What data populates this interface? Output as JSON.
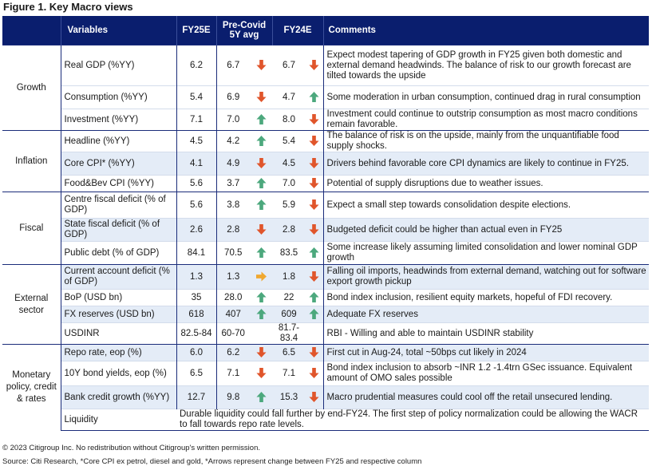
{
  "title": "Figure 1. Key Macro views",
  "headers": {
    "group": "",
    "variables": "Variables",
    "fy25": "FY25E",
    "precovid": "Pre-Covid 5Y avg",
    "fy24": "FY24E",
    "comments": "Comments"
  },
  "groups": [
    {
      "name": "Growth",
      "rows": [
        {
          "var": "Real GDP (%YY)",
          "fy25": "6.2",
          "pc": "6.7",
          "a1": "down",
          "fy24": "6.7",
          "a2": "down",
          "com": "Expect modest tapering of GDP growth in FY25 given both domestic and external demand headwinds. The balance of risk to our growth forecast are tilted towards the upside"
        },
        {
          "var": "Consumption (%YY)",
          "fy25": "5.4",
          "pc": "6.9",
          "a1": "down",
          "fy24": "4.7",
          "a2": "up",
          "com": "Some moderation in urban consumption, continued drag in rural consumption"
        },
        {
          "var": "Investment (%YY)",
          "fy25": "7.1",
          "pc": "7.0",
          "a1": "up",
          "fy24": "8.0",
          "a2": "down",
          "com": "Investment could continue to outstrip consumption as most macro conditions remain favorable."
        }
      ]
    },
    {
      "name": "Inflation",
      "rows": [
        {
          "var": "Headline (%YY)",
          "fy25": "4.5",
          "pc": "4.2",
          "a1": "up",
          "fy24": "5.4",
          "a2": "down",
          "com": "The balance of risk is on the upside, mainly from the unquantifiable food supply shocks."
        },
        {
          "var": "Core CPI* (%YY)",
          "fy25": "4.1",
          "pc": "4.9",
          "a1": "down",
          "fy24": "4.5",
          "a2": "down",
          "com": "Drivers behind favorable core CPI dynamics are likely to continue in FY25."
        },
        {
          "var": "Food&Bev CPI (%YY)",
          "fy25": "5.6",
          "pc": "3.7",
          "a1": "up",
          "fy24": "7.0",
          "a2": "down",
          "com": "Potential of supply disruptions due to weather issues."
        }
      ]
    },
    {
      "name": "Fiscal",
      "rows": [
        {
          "var": "Centre fiscal deficit (% of GDP)",
          "fy25": "5.6",
          "pc": "3.8",
          "a1": "up",
          "fy24": "5.9",
          "a2": "down",
          "com": "Expect a small step towards consolidation despite elections."
        },
        {
          "var": "State fiscal deficit (% of GDP)",
          "fy25": "2.6",
          "pc": "2.8",
          "a1": "down",
          "fy24": "2.8",
          "a2": "down",
          "com": "Budgeted deficit could be higher than actual even in FY25"
        },
        {
          "var": "Public debt (% of GDP)",
          "fy25": "84.1",
          "pc": "70.5",
          "a1": "up",
          "fy24": "83.5",
          "a2": "up",
          "com": "Some increase likely assuming limited consolidation and lower nominal GDP growth"
        }
      ]
    },
    {
      "name": "External sector",
      "rows": [
        {
          "var": "Current account deficit (% of GDP)",
          "fy25": "1.3",
          "pc": "1.3",
          "a1": "flat",
          "fy24": "1.8",
          "a2": "down",
          "com": "Falling oil imports, headwinds from external demand, watching out for software export growth pickup"
        },
        {
          "var": "BoP (USD bn)",
          "fy25": "35",
          "pc": "28.0",
          "a1": "up",
          "fy24": "22",
          "a2": "up",
          "com": "Bond index inclusion, resilient equity markets, hopeful of FDI recovery."
        },
        {
          "var": "FX reserves (USD bn)",
          "fy25": "618",
          "pc": "407",
          "a1": "up",
          "fy24": "609",
          "a2": "up",
          "com": "Adequate FX reserves"
        },
        {
          "var": "USDINR",
          "fy25": "82.5-84",
          "pc": "60-70",
          "a1": "",
          "fy24": "81.7-83.4",
          "a2": "",
          "com": "RBI - Willing and able to maintain USDINR stability"
        }
      ]
    },
    {
      "name": "Monetary policy, credit & rates",
      "rows": [
        {
          "var": "Repo rate, eop (%)",
          "fy25": "6.0",
          "pc": "6.2",
          "a1": "down",
          "fy24": "6.5",
          "a2": "down",
          "com": "First cut in Aug-24, total ~50bps cut likely in 2024"
        },
        {
          "var": "10Y bond yields, eop (%)",
          "fy25": "6.5",
          "pc": "7.1",
          "a1": "down",
          "fy24": "7.1",
          "a2": "down",
          "com": "Bond index inclusion to absorb ~INR 1.2 -1.4trn GSec issuance. Equivalent amount of OMO sales possible"
        },
        {
          "var": "Bank credit growth (%YY)",
          "fy25": "12.7",
          "pc": "9.8",
          "a1": "up",
          "fy24": "15.3",
          "a2": "down",
          "com": "Macro prudential measures could cool off the retail unsecured lending."
        },
        {
          "var": "Liquidity",
          "com": "Durable liquidity could fall further by end-FY24. The first step of policy normalization could be allowing the WACR to fall towards repo rate levels."
        }
      ]
    }
  ],
  "arrow_colors": {
    "up": "#4ca87d",
    "down": "#e0552b",
    "flat": "#f0a830"
  },
  "footer": {
    "copyright": "© 2023 Citigroup Inc. No redistribution without Citigroup's written permission.",
    "source": "Source: Citi Research, *Core CPI ex petrol, diesel and gold, *Arrows represent change between FY25 and respective column"
  }
}
